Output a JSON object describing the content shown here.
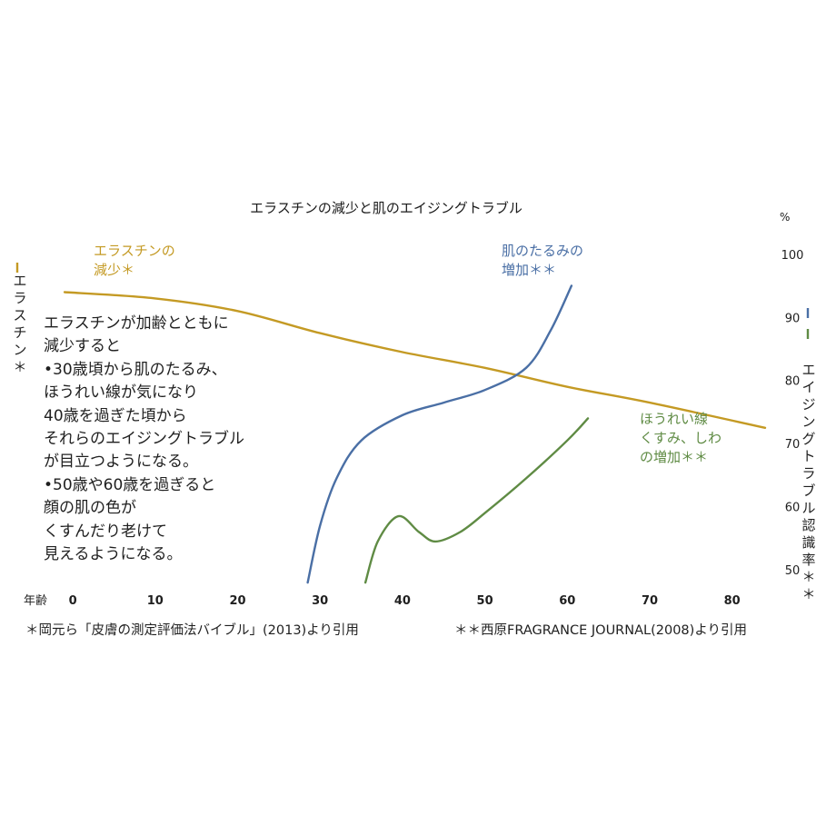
{
  "chart_data": {
    "type": "line",
    "title": "エラスチンの減少と肌のエイジングトラブル",
    "xlabel": "年齢",
    "x_ticks": [
      0,
      10,
      20,
      30,
      40,
      50,
      60,
      70,
      80
    ],
    "xlim": [
      -2,
      84
    ],
    "y_right": {
      "unit": "%",
      "title": "エイジングトラブル認識率＊＊",
      "ticks": [
        50,
        60,
        70,
        80,
        90,
        100
      ],
      "ylim": [
        47,
        104
      ]
    },
    "y_left": {
      "title": "エラスチン＊"
    },
    "series": [
      {
        "name": "エラスチンの減少＊",
        "color": "#c49a24",
        "axis": "left",
        "x": [
          -1,
          10,
          20,
          30,
          40,
          50,
          60,
          70,
          84
        ],
        "y": [
          94,
          93,
          91,
          87.5,
          84.5,
          82,
          79,
          76.5,
          72.5
        ]
      },
      {
        "name": "肌のたるみの増加＊＊",
        "color": "#4a6fa5",
        "axis": "right",
        "x": [
          28.5,
          30,
          32,
          35,
          40,
          45,
          50,
          55,
          58,
          60.5
        ],
        "y": [
          48,
          57,
          64.5,
          70.5,
          74.5,
          76.5,
          78.5,
          82,
          88,
          95
        ]
      },
      {
        "name": "ほうれい線くすみ、しわの増加＊＊",
        "color": "#5f8b44",
        "axis": "right",
        "x": [
          35.5,
          37,
          39.5,
          42,
          44,
          47,
          50,
          55,
          60,
          62.5
        ],
        "y": [
          48,
          54.5,
          58.5,
          56,
          54.5,
          56,
          59,
          64.5,
          70.5,
          74
        ]
      }
    ],
    "annotation": "エラスチンが加齢とともに\n減少すると\n•30歳頃から肌のたるみ、\nほうれい線が気になり\n40歳を過ぎた頃から\nそれらのエイジングトラブル\nが目立つようになる。\n•50歳や60歳を過ぎると\n顔の肌の色が\nくすんだり老けて\n見えるようになる。",
    "series_labels": {
      "elastin": "エラスチンの\n減少＊",
      "sagging": "肌のたるみの\n増加＊＊",
      "lines": "ほうれい線\nくすみ、しわ\nの増加＊＊"
    },
    "footnotes": [
      "＊岡元ら「皮膚の測定評価法バイブル」(2013)より引用",
      "＊＊西原FRAGRANCE JOURNAL(2008)より引用"
    ]
  }
}
